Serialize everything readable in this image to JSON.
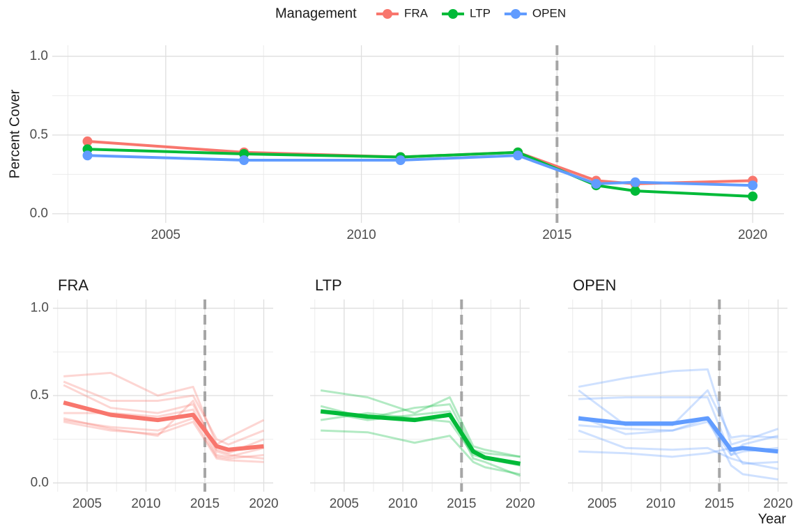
{
  "chart_data": [
    {
      "type": "line",
      "legend_title": "Management",
      "ylabel": "Percent Cover",
      "x": [
        2003,
        2007,
        2011,
        2014,
        2016,
        2017,
        2020
      ],
      "series": [
        {
          "name": "FRA",
          "color": "#F8766D",
          "values": [
            0.46,
            0.39,
            0.36,
            0.39,
            0.21,
            0.19,
            0.21
          ]
        },
        {
          "name": "LTP",
          "color": "#00BA38",
          "values": [
            0.41,
            0.38,
            0.36,
            0.39,
            0.18,
            0.145,
            0.11
          ]
        },
        {
          "name": "OPEN",
          "color": "#619CFF",
          "values": [
            0.37,
            0.34,
            0.34,
            0.37,
            0.19,
            0.2,
            0.18
          ]
        }
      ],
      "xlim": [
        2002.1,
        2020.8
      ],
      "ylim": [
        -0.058,
        1.07
      ],
      "xticks": [
        2005,
        2010,
        2015,
        2020
      ],
      "yticks": [
        {
          "value": 0,
          "label": "0.0"
        },
        0.5,
        {
          "value": 1,
          "label": "1.0"
        }
      ],
      "vline": 2015,
      "grid": true,
      "markers": true
    },
    {
      "type": "line",
      "title": "FRA",
      "x": [
        2003,
        2007,
        2011,
        2014,
        2016,
        2017,
        2020
      ],
      "series": [
        {
          "color": "#F8766D",
          "opacity": 0.3,
          "values": [
            0.61,
            0.63,
            0.5,
            0.55,
            0.22,
            0.26,
            0.36
          ]
        },
        {
          "color": "#F8766D",
          "opacity": 0.3,
          "values": [
            0.58,
            0.47,
            0.47,
            0.5,
            0.25,
            0.22,
            0.3
          ]
        },
        {
          "color": "#F8766D",
          "opacity": 0.3,
          "values": [
            0.56,
            0.43,
            0.4,
            0.45,
            0.19,
            0.17,
            0.25
          ]
        },
        {
          "color": "#F8766D",
          "opacity": 0.3,
          "values": [
            0.4,
            0.4,
            0.38,
            0.42,
            0.16,
            0.15,
            0.2
          ]
        },
        {
          "color": "#F8766D",
          "opacity": 0.3,
          "values": [
            0.36,
            0.32,
            0.3,
            0.37,
            0.15,
            0.14,
            0.16
          ]
        },
        {
          "color": "#F8766D",
          "opacity": 0.3,
          "values": [
            0.35,
            0.3,
            0.28,
            0.35,
            0.14,
            0.13,
            0.12
          ]
        },
        {
          "color": "#F8766D",
          "opacity": 0.3,
          "values": [
            0.37,
            0.31,
            0.27,
            0.47,
            0.18,
            0.16,
            0.14
          ]
        },
        {
          "color": "#F8766D",
          "opacity": 1,
          "values": [
            0.46,
            0.39,
            0.36,
            0.39,
            0.21,
            0.19,
            0.21
          ]
        }
      ],
      "xlim": [
        2002.1,
        2020.8
      ],
      "ylim": [
        -0.05,
        1.05
      ],
      "xticks": [
        2005,
        2010,
        2015,
        2020
      ],
      "yticks": [
        {
          "value": 0,
          "label": "0.0"
        },
        0.5,
        {
          "value": 1,
          "label": "1.0"
        }
      ],
      "ytick_labels": true,
      "vline": 2015,
      "grid": true
    },
    {
      "type": "line",
      "title": "LTP",
      "x": [
        2003,
        2007,
        2011,
        2014,
        2016,
        2017,
        2020
      ],
      "series": [
        {
          "color": "#00BA38",
          "opacity": 0.3,
          "values": [
            0.53,
            0.49,
            0.4,
            0.49,
            0.21,
            0.19,
            0.15
          ]
        },
        {
          "color": "#00BA38",
          "opacity": 0.3,
          "values": [
            0.44,
            0.37,
            0.43,
            0.45,
            0.19,
            0.17,
            0.15
          ]
        },
        {
          "color": "#00BA38",
          "opacity": 0.3,
          "values": [
            0.36,
            0.4,
            0.37,
            0.35,
            0.16,
            0.14,
            0.1
          ]
        },
        {
          "color": "#00BA38",
          "opacity": 0.3,
          "values": [
            0.3,
            0.29,
            0.23,
            0.27,
            0.12,
            0.09,
            0.05
          ]
        },
        {
          "color": "#00BA38",
          "opacity": 0.3,
          "values": [
            0.41,
            0.36,
            0.39,
            0.41,
            0.14,
            0.12,
            0.04
          ]
        },
        {
          "color": "#00BA38",
          "opacity": 1,
          "values": [
            0.41,
            0.38,
            0.36,
            0.39,
            0.18,
            0.145,
            0.11
          ]
        }
      ],
      "xlim": [
        2002.1,
        2020.8
      ],
      "ylim": [
        -0.05,
        1.05
      ],
      "xticks": [
        2005,
        2010,
        2015,
        2020
      ],
      "yticks": [
        {
          "value": 0,
          "label": "0.0"
        },
        0.5,
        {
          "value": 1,
          "label": "1.0"
        }
      ],
      "ytick_labels": false,
      "vline": 2015,
      "grid": true
    },
    {
      "type": "line",
      "title": "OPEN",
      "xlabel": "Year",
      "x": [
        2003,
        2007,
        2011,
        2014,
        2016,
        2017,
        2020
      ],
      "series": [
        {
          "color": "#619CFF",
          "opacity": 0.3,
          "values": [
            0.55,
            0.6,
            0.64,
            0.65,
            0.22,
            0.24,
            0.31
          ]
        },
        {
          "color": "#619CFF",
          "opacity": 0.3,
          "values": [
            0.53,
            0.33,
            0.33,
            0.53,
            0.26,
            0.27,
            0.26
          ]
        },
        {
          "color": "#619CFF",
          "opacity": 0.3,
          "values": [
            0.48,
            0.49,
            0.49,
            0.49,
            0.16,
            0.22,
            0.27
          ]
        },
        {
          "color": "#619CFF",
          "opacity": 0.3,
          "values": [
            0.33,
            0.31,
            0.3,
            0.37,
            0.1,
            0.05,
            0.02
          ]
        },
        {
          "color": "#619CFF",
          "opacity": 0.3,
          "values": [
            0.3,
            0.2,
            0.19,
            0.2,
            0.14,
            0.12,
            0.08
          ]
        },
        {
          "color": "#619CFF",
          "opacity": 0.3,
          "values": [
            0.18,
            0.17,
            0.15,
            0.17,
            0.2,
            0.11,
            0.12
          ]
        },
        {
          "color": "#619CFF",
          "opacity": 0.3,
          "values": [
            0.38,
            0.28,
            0.3,
            0.35,
            0.16,
            0.18,
            0.2
          ]
        },
        {
          "color": "#619CFF",
          "opacity": 1,
          "values": [
            0.37,
            0.34,
            0.34,
            0.37,
            0.19,
            0.2,
            0.18
          ]
        }
      ],
      "xlim": [
        2002.1,
        2020.8
      ],
      "ylim": [
        -0.05,
        1.05
      ],
      "xticks": [
        2005,
        2010,
        2015,
        2020
      ],
      "yticks": [
        {
          "value": 0,
          "label": "0.0"
        },
        0.5,
        {
          "value": 1,
          "label": "1.0"
        }
      ],
      "ytick_labels": false,
      "vline": 2015,
      "grid": true
    }
  ]
}
